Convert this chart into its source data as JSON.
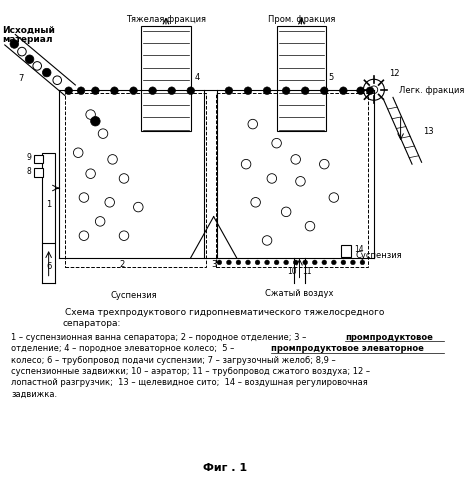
{
  "bg_color": "#ffffff",
  "line_color": "#000000",
  "fig_width": 4.73,
  "fig_height": 5.0,
  "dpi": 100,
  "label_top_heavy": "Тяжелая фракция",
  "label_top_prom": "Пром. фракция",
  "label_ishodny1": "Исходный",
  "label_ishodny2": "материал",
  "label_legk": "Легк. фракция",
  "label_suspenziya1": "Суспензия",
  "label_suspenziya2": "Суспензия",
  "label_szhatyy": "Сжатый воздух",
  "title_line1": "Схема трехпродуктового гидропневматического тяжелосредного",
  "title_line2": "сепаратора:",
  "desc_line1a": "1 – суспензионная ванна сепаратора; 2 – породное отделение; 3 – ",
  "desc_line1b": "промпродуктовое",
  "desc_line2a": "отделение; 4 – породное элеваторное колесо;  5 – ",
  "desc_line2b": "промпродуктовое элеваторное",
  "desc_line3": "колесо; 6 – трубопровод подачи суспензии; 7 – загрузочный желоб; 8,9 –",
  "desc_line4": "суспензионные задвижки; 10 – аэратор; 11 – трубопровод сжатого воздуха; 12 –",
  "desc_line5": "лопастной разгрузчик;  13 – щелевидное сито;  14 – воздушная регулировочная",
  "desc_line6": "задвижка.",
  "caption": "Фиг . 1"
}
